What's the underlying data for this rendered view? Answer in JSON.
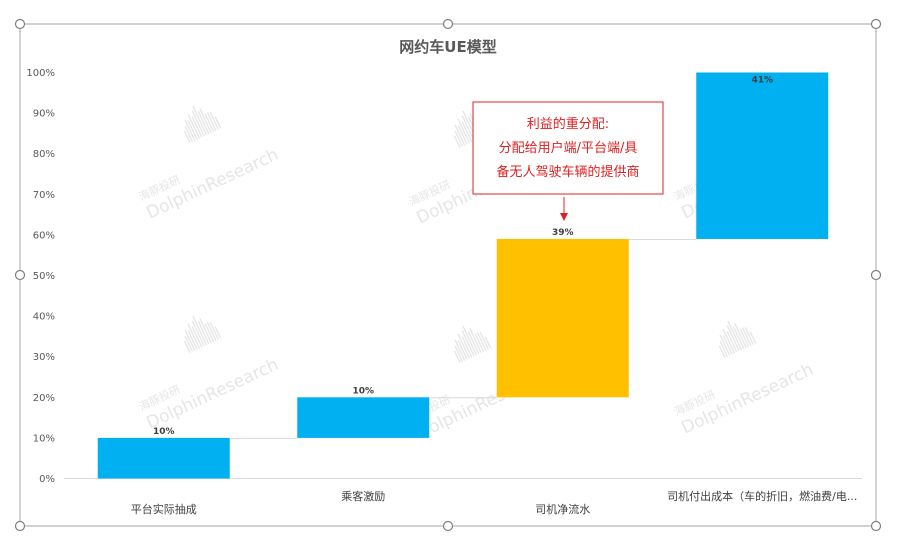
{
  "chart_data": {
    "type": "waterfall",
    "title": "网约车UE模型",
    "categories": [
      "平台实际抽成",
      "乘客激励",
      "司机净流水",
      "司机付出成本（车的折旧，燃油费/电..."
    ],
    "values": [
      10,
      10,
      39,
      41
    ],
    "bars": [
      {
        "start": 0,
        "end": 10
      },
      {
        "start": 10,
        "end": 20
      },
      {
        "start": 20,
        "end": 59
      },
      {
        "start": 59,
        "end": 100
      }
    ],
    "data_labels": [
      "10%",
      "10%",
      "39%",
      "41%"
    ],
    "colors": [
      "#00b0f0",
      "#00b0f0",
      "#ffc000",
      "#00b0f0"
    ],
    "ylim": [
      0,
      100
    ],
    "yticks": [
      "0%",
      "10%",
      "20%",
      "30%",
      "40%",
      "50%",
      "60%",
      "70%",
      "80%",
      "90%",
      "100%"
    ],
    "xlabel": "",
    "ylabel": "",
    "grid": false,
    "legend": "none",
    "annotation": {
      "lines": [
        "利益的重分配:",
        "分配给用户端/平台端/具",
        "备无人驾驶车辆的提供商"
      ],
      "color": "#e02020",
      "target_category": "司机净流水"
    },
    "watermark": {
      "cn": "海豚投研",
      "en": "DolphinResearch"
    }
  }
}
